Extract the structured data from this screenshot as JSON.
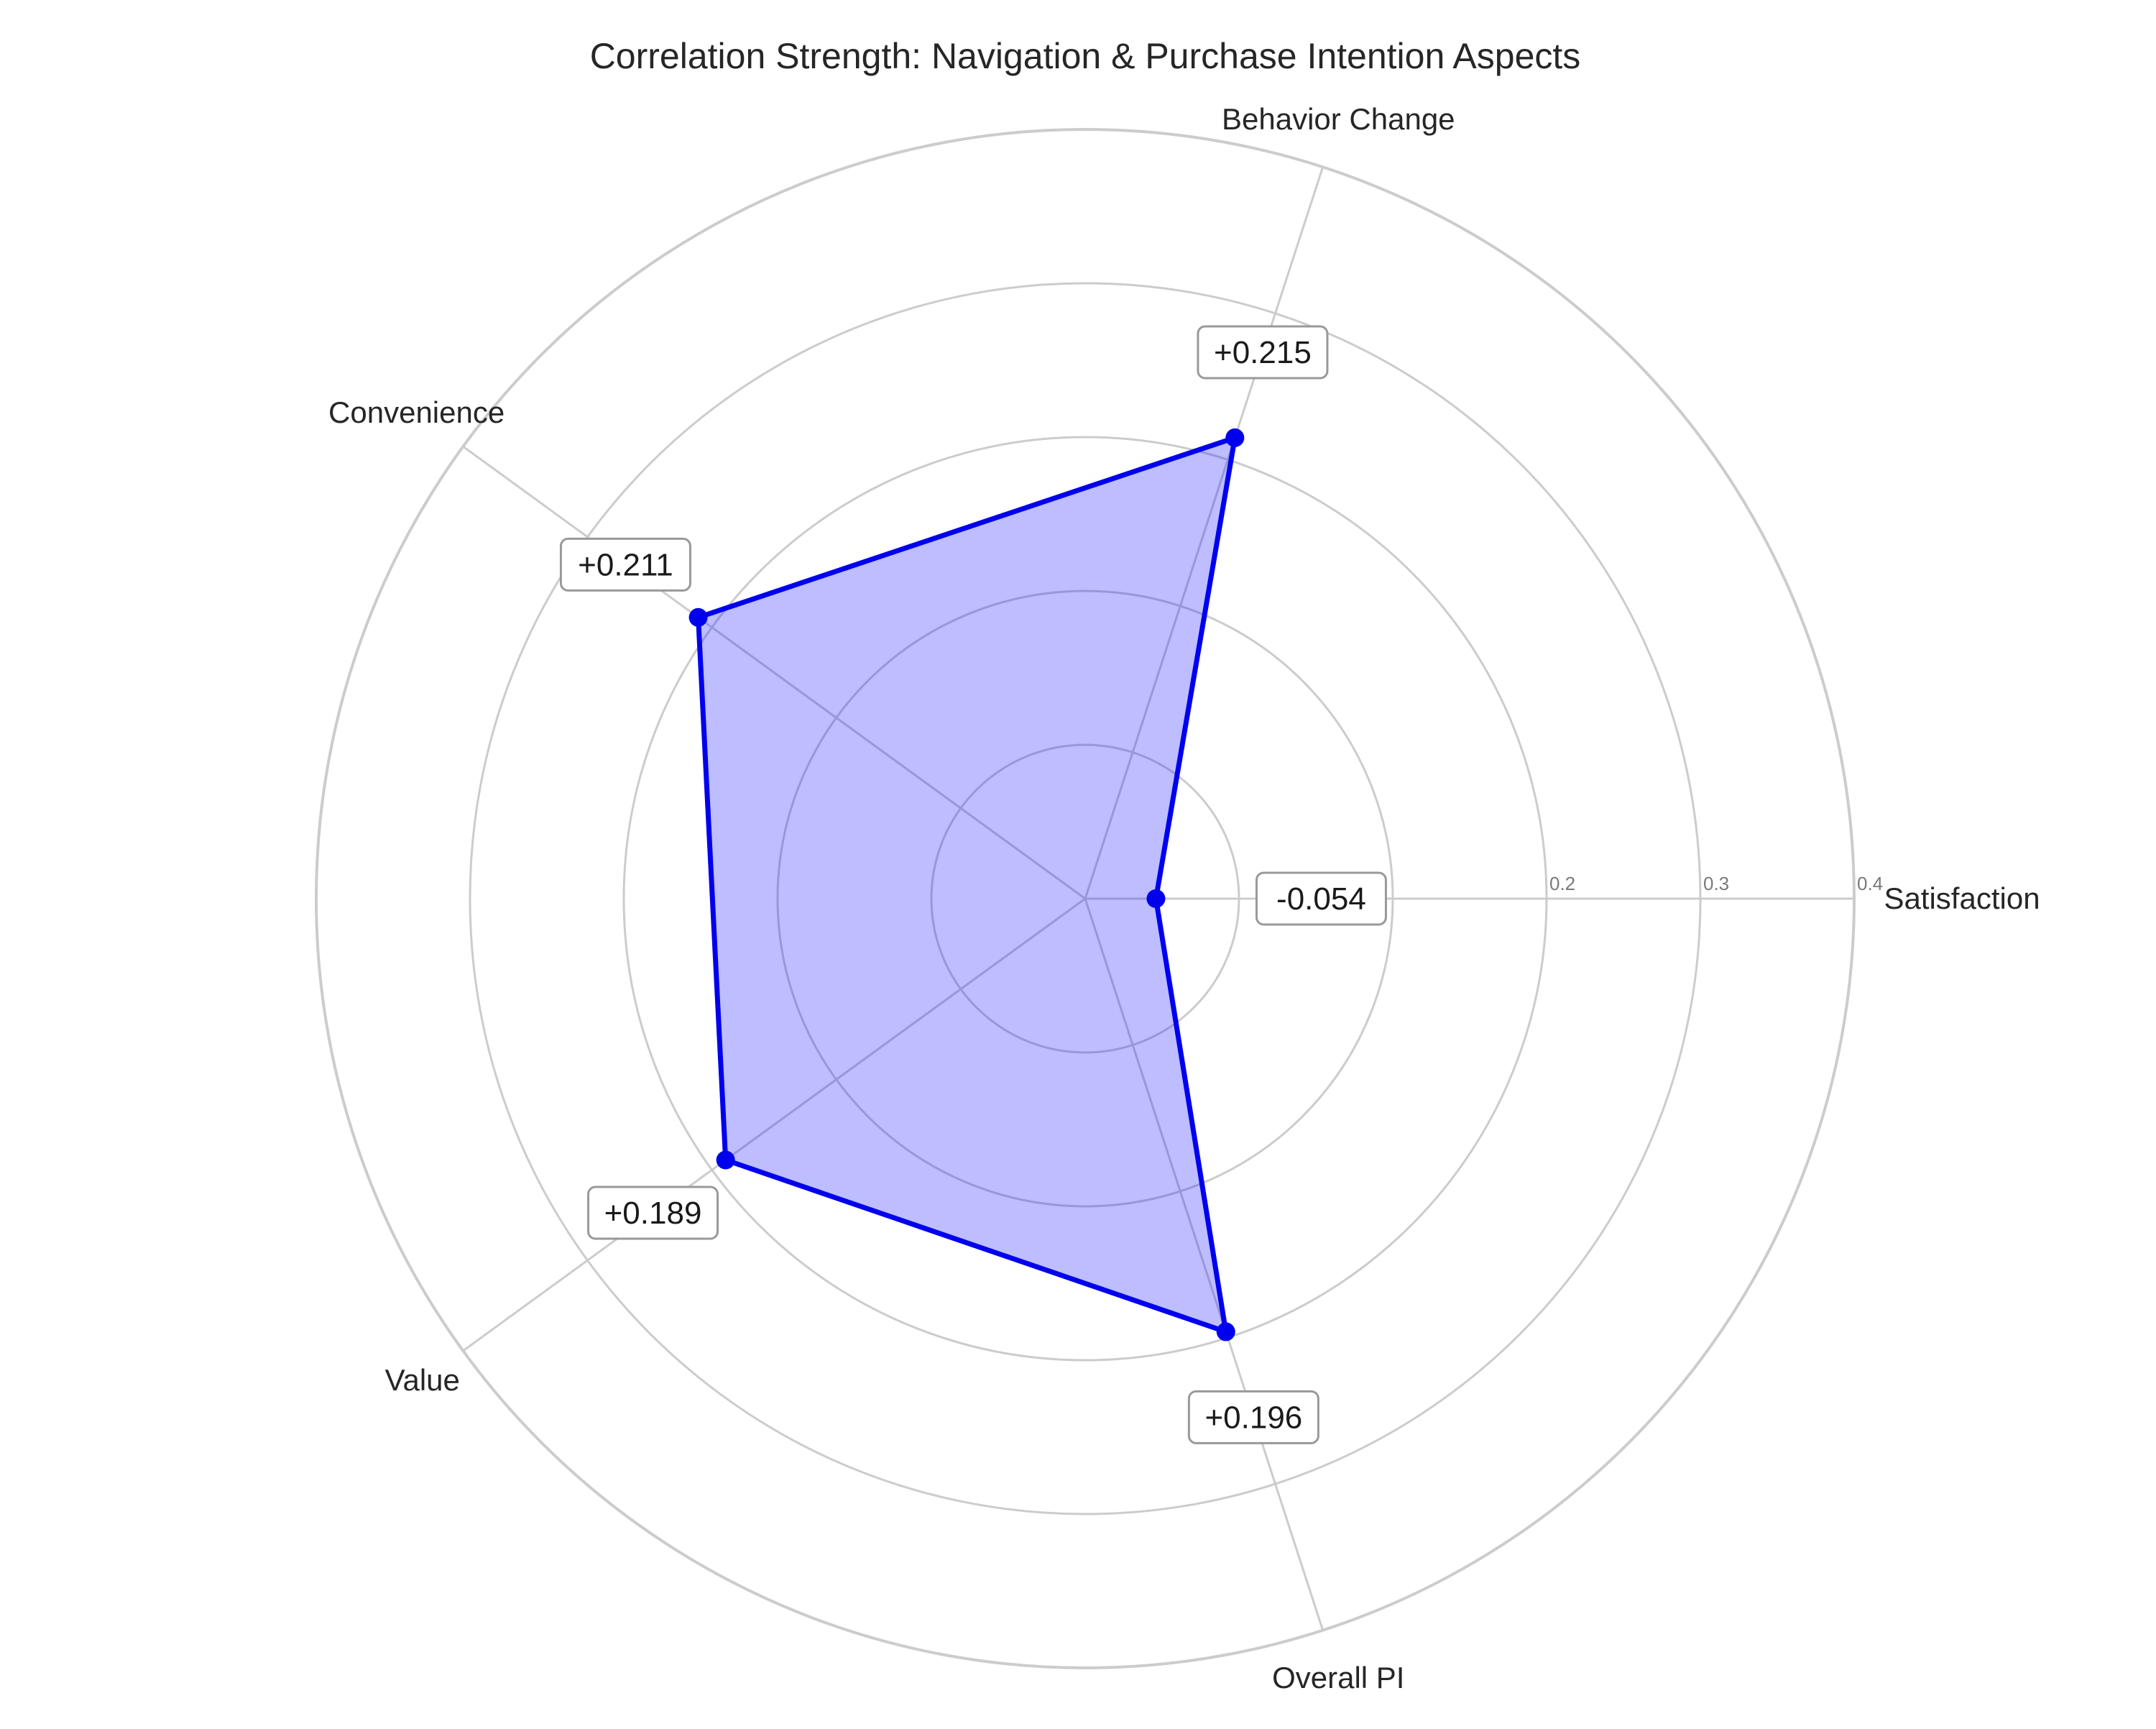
{
  "chart_data": {
    "type": "radar",
    "title": "Correlation Strength: Navigation & Purchase Intention Aspects",
    "categories": [
      "Satisfaction",
      "Behavior Change",
      "Convenience",
      "Value",
      "Overall PI"
    ],
    "values": [
      -0.054,
      0.215,
      0.211,
      0.189,
      0.196
    ],
    "value_labels": [
      "-0.054",
      "+0.215",
      "+0.211",
      "+0.189",
      "+0.196"
    ],
    "r_ticks": [
      0.2,
      0.3,
      0.4
    ],
    "r_tick_labels": [
      "0.2",
      "0.3",
      "0.4"
    ],
    "r_range": [
      -0.1,
      0.4
    ],
    "grid": true,
    "colors": {
      "series_line": "#0000ee",
      "series_fill": "#0000ff",
      "grid": "#cccccc",
      "label_box_border": "#999999"
    }
  }
}
